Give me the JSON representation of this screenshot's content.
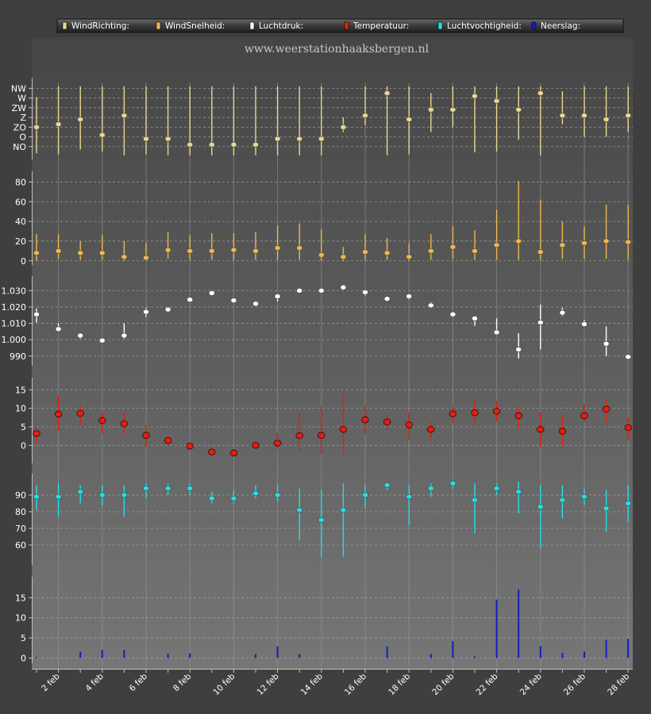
{
  "site_title": "www.weerstationhaaksbergen.nl",
  "legend": [
    {
      "label": "WindRichting:",
      "color": "#e8d890"
    },
    {
      "label": "WindSnelheid:",
      "color": "#f0b84a"
    },
    {
      "label": "Luchtdruk:",
      "color": "#ffffff"
    },
    {
      "label": "Temperatuur:",
      "color": "#e02010"
    },
    {
      "label": "Luchtvochtigheid:",
      "color": "#20e0e8"
    },
    {
      "label": "Neerslag:",
      "color": "#1020c0"
    }
  ],
  "chart_data": {
    "type": "scatter",
    "x": [
      "1 feb",
      "2 feb",
      "3 feb",
      "4 feb",
      "5 feb",
      "6 feb",
      "7 feb",
      "8 feb",
      "9 feb",
      "10 feb",
      "11 feb",
      "12 feb",
      "13 feb",
      "14 feb",
      "15 feb",
      "16 feb",
      "17 feb",
      "18 feb",
      "19 feb",
      "20 feb",
      "21 feb",
      "22 feb",
      "23 feb",
      "24 feb",
      "25 feb",
      "26 feb",
      "27 feb",
      "28 feb"
    ],
    "x_tick_labels": [
      "2 feb",
      "4 feb",
      "6 feb",
      "8 feb",
      "10 feb",
      "12 feb",
      "14 feb",
      "16 feb",
      "18 feb",
      "20 feb",
      "22 feb",
      "24 feb",
      "26 feb",
      "28 feb"
    ],
    "grid": true,
    "panels": [
      {
        "name": "WindRichting",
        "color": "#e8d890",
        "y_tick_labels": [
          "NW",
          "W",
          "ZW",
          "Z",
          "ZO",
          "O",
          "NO"
        ],
        "y_tick_values": [
          7,
          6,
          5,
          4,
          3,
          2,
          1
        ],
        "ylim": [
          0.0,
          7.6
        ],
        "values": [
          3.0,
          3.3,
          3.8,
          2.2,
          4.2,
          1.8,
          1.8,
          1.2,
          1.2,
          1.2,
          1.2,
          1.8,
          1.8,
          1.8,
          3.0,
          4.2,
          6.5,
          3.8,
          4.8,
          4.8,
          6.2,
          5.7,
          4.8,
          6.5,
          4.2,
          4.2,
          3.8,
          4.2
        ],
        "low": [
          0.3,
          0.2,
          0.7,
          0.5,
          0.1,
          0.2,
          0.1,
          0.1,
          0.1,
          0.1,
          0.1,
          0.1,
          0.1,
          0.1,
          2.5,
          3.2,
          0.1,
          0.2,
          2.5,
          3.0,
          0.4,
          0.5,
          1.7,
          0.1,
          3.3,
          2.0,
          2.0,
          2.5
        ],
        "high": [
          6.1,
          7.2,
          7.2,
          7.2,
          7.2,
          7.2,
          7.2,
          7.2,
          7.2,
          7.2,
          7.2,
          7.2,
          7.2,
          7.2,
          4.0,
          7.2,
          7.2,
          7.2,
          6.5,
          7.2,
          7.2,
          7.2,
          7.2,
          7.2,
          6.7,
          7.2,
          7.2,
          7.2
        ]
      },
      {
        "name": "WindSnelheid",
        "color": "#f0b84a",
        "y_tick_labels": [
          "80",
          "60",
          "40",
          "20",
          "0"
        ],
        "y_tick_values": [
          80,
          60,
          40,
          20,
          0
        ],
        "ylim": [
          -1,
          86
        ],
        "values": [
          8,
          10,
          8,
          8,
          4,
          3,
          11,
          10,
          10,
          11,
          10,
          13,
          13,
          6,
          4,
          9,
          8,
          4,
          10,
          14,
          10,
          16,
          20,
          9,
          16,
          18,
          20,
          19
        ],
        "low": [
          0,
          2,
          1,
          1,
          0,
          0,
          2,
          1,
          1,
          1,
          1,
          1,
          1,
          0,
          0,
          1,
          1,
          0,
          1,
          2,
          1,
          1,
          1,
          1,
          2,
          2,
          2,
          1
        ],
        "high": [
          27,
          27,
          20,
          26,
          20,
          18,
          29,
          26,
          28,
          28,
          29,
          36,
          38,
          32,
          14,
          27,
          23,
          18,
          27,
          35,
          31,
          52,
          81,
          62,
          40,
          35,
          57,
          57
        ]
      },
      {
        "name": "Luchtdruk",
        "color": "#ffffff",
        "y_tick_labels": [
          "1.030",
          "1.020",
          "1.010",
          "1.000",
          "990"
        ],
        "y_tick_values": [
          1030,
          1020,
          1010,
          1000,
          990
        ],
        "ylim": [
          986,
          1036
        ],
        "values": [
          1015.5,
          1006.5,
          1002.5,
          999.5,
          1002.5,
          1017,
          1018.5,
          1024.5,
          1028.5,
          1024,
          1022,
          1026.5,
          1030,
          1030,
          1032,
          1029,
          1025,
          1026.5,
          1021,
          1015.5,
          1013,
          1004.5,
          994,
          1010.5,
          1016.5,
          1009.5,
          997.5,
          989.5
        ],
        "low": [
          1010.5,
          1005,
          1000.5,
          998.5,
          1000.5,
          1014,
          1017,
          1023.5,
          1027,
          1023,
          1021,
          1023.5,
          1029,
          1029,
          1030.5,
          1027,
          1024,
          1024.5,
          1019.5,
          1014,
          1008.5,
          1003.5,
          988.5,
          994,
          1014.5,
          1008.5,
          990,
          988.5
        ],
        "high": [
          1019,
          1010,
          1004,
          1000.5,
          1010,
          1019.5,
          1019.5,
          1025.5,
          1030,
          1025,
          1023.5,
          1027.5,
          1031,
          1031,
          1033.5,
          1030.5,
          1026,
          1027.5,
          1023,
          1017,
          1014.5,
          1013,
          1004,
          1021.5,
          1019.5,
          1012,
          1008,
          991
        ]
      },
      {
        "name": "Temperatuur",
        "color": "#e02010",
        "y_tick_labels": [
          "15",
          "10",
          "5",
          "0"
        ],
        "y_tick_values": [
          15,
          10,
          5,
          0
        ],
        "ylim": [
          -4,
          17
        ],
        "values": [
          3.2,
          8.4,
          8.6,
          6.7,
          5.8,
          2.7,
          1.3,
          -0.2,
          -1.8,
          -2.1,
          0.0,
          0.6,
          2.6,
          2.7,
          4.3,
          6.9,
          6.3,
          5.5,
          4.3,
          8.5,
          8.8,
          9.2,
          8.0,
          4.3,
          3.8,
          8.0,
          9.8,
          4.8
        ],
        "low": [
          0.5,
          4.0,
          5.5,
          3.2,
          3.0,
          -0.5,
          0.0,
          -1.0,
          -3.0,
          -3.0,
          -1.0,
          -1.0,
          -1.5,
          -2.5,
          -2.5,
          3.0,
          4.5,
          1.5,
          1.5,
          6.0,
          6.0,
          6.5,
          4.5,
          -0.5,
          -0.5,
          6.5,
          6.0,
          1.5
        ],
        "high": [
          5.0,
          13.5,
          11.0,
          9.0,
          9.0,
          5.5,
          2.5,
          0.5,
          -1.0,
          -1.0,
          1.0,
          3.5,
          9.0,
          10.5,
          15.0,
          10.5,
          8.0,
          9.0,
          6.5,
          10.5,
          12.5,
          12.0,
          10.5,
          9.0,
          8.0,
          11.0,
          12.5,
          7.5
        ]
      },
      {
        "name": "Luchtvochtigheid",
        "color": "#20e0e8",
        "y_tick_labels": [
          "90",
          "80",
          "70",
          "60"
        ],
        "y_tick_values": [
          90,
          80,
          70,
          60
        ],
        "ylim": [
          50,
          100
        ],
        "values": [
          89,
          89,
          92,
          90,
          90,
          94,
          94,
          94,
          88,
          88,
          91,
          90,
          81,
          75,
          81,
          90,
          96,
          89,
          94,
          97,
          87,
          94,
          92,
          83,
          87,
          89,
          82,
          85
        ],
        "low": [
          81,
          77,
          85,
          84,
          77,
          88,
          90,
          90,
          85,
          85,
          88,
          86,
          63,
          53,
          53,
          82,
          93,
          72,
          89,
          94,
          67,
          90,
          79,
          58,
          76,
          84,
          68,
          74
        ],
        "high": [
          96,
          97,
          96,
          96,
          96,
          97,
          97,
          97,
          92,
          93,
          96,
          96,
          94,
          93,
          97,
          96,
          97,
          96,
          97,
          98,
          97,
          97,
          98,
          96,
          96,
          94,
          93,
          96
        ]
      },
      {
        "name": "Neerslag",
        "color": "#1020c0",
        "type": "bar",
        "y_tick_labels": [
          "15",
          "10",
          "5",
          "0"
        ],
        "y_tick_values": [
          15,
          10,
          5,
          0
        ],
        "ylim": [
          -0.5,
          19
        ],
        "values": [
          0.3,
          0.0,
          1.6,
          2.0,
          2.0,
          0.0,
          1.0,
          1.2,
          0.0,
          0.0,
          1.0,
          2.9,
          1.0,
          0.0,
          0.0,
          0.0,
          2.9,
          0.0,
          1.0,
          4.2,
          0.4,
          14.5,
          17.0,
          3.0,
          1.3,
          1.6,
          4.5,
          4.8
        ]
      }
    ]
  }
}
